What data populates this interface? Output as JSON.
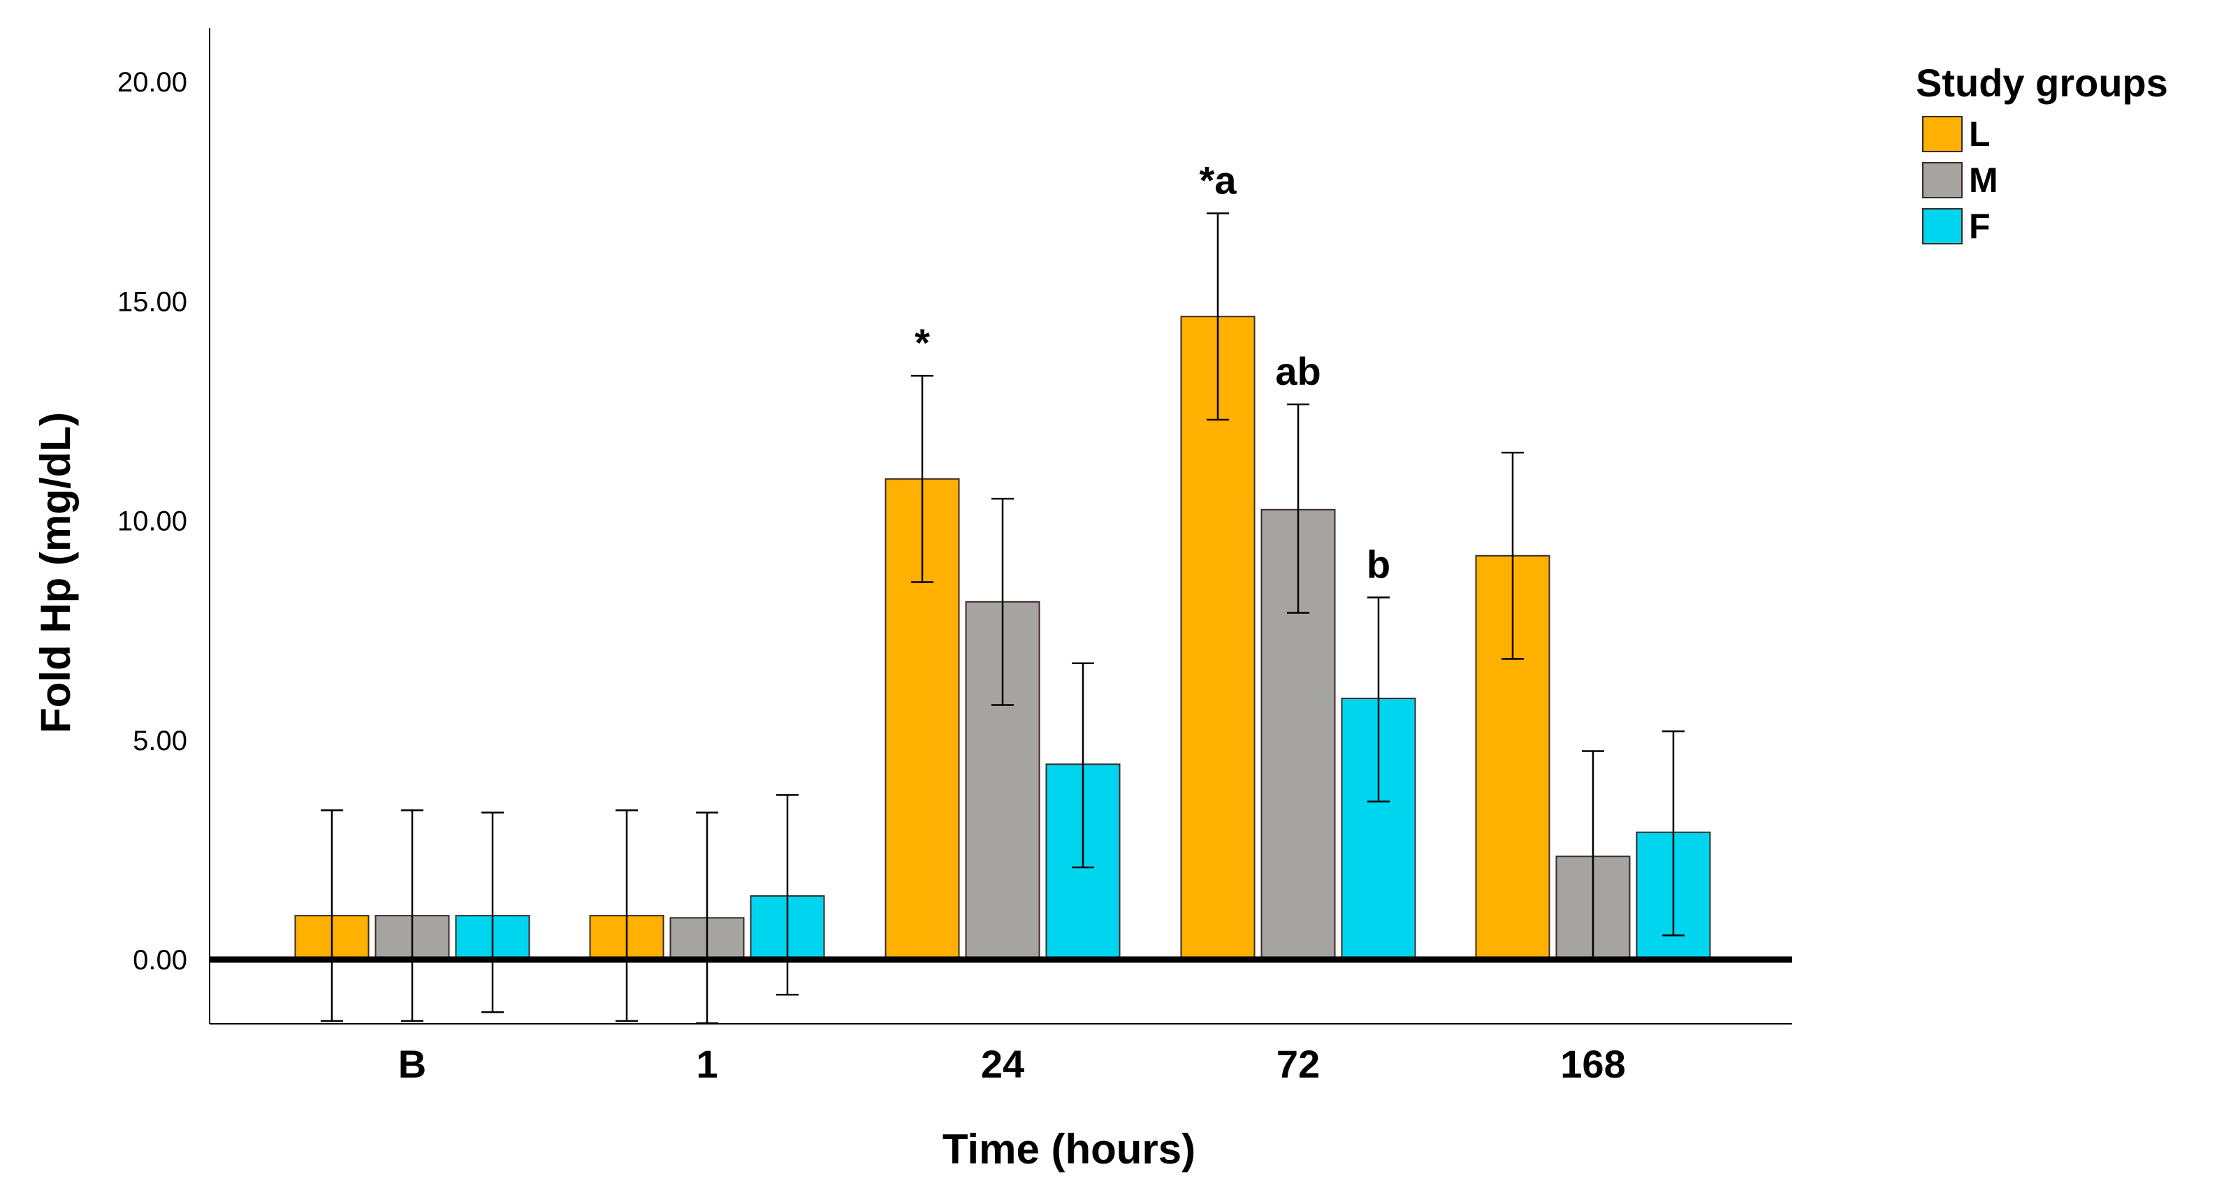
{
  "chart_data": {
    "type": "bar",
    "xlabel": "Time (hours)",
    "ylabel": "Fold Hp (mg/dL)",
    "ylim": [
      -1.5,
      21.5
    ],
    "yticks": [
      0,
      5,
      10,
      15,
      20
    ],
    "ytick_labels": [
      "0.00",
      "5.00",
      "10.00",
      "15.00",
      "20.00"
    ],
    "categories": [
      "B",
      "1",
      "24",
      "72",
      "168"
    ],
    "legend": {
      "title": "Study groups",
      "position": "top-right"
    },
    "series": [
      {
        "name": "L",
        "color": "#FFB000",
        "values": [
          1.0,
          1.0,
          10.95,
          14.65,
          9.2
        ],
        "err_low": [
          -1.4,
          -1.4,
          8.6,
          12.3,
          6.85
        ],
        "err_high": [
          3.4,
          3.4,
          13.3,
          17.0,
          11.55
        ]
      },
      {
        "name": "M",
        "color": "#A6A4A0",
        "values": [
          1.0,
          0.95,
          8.15,
          10.25,
          2.35
        ],
        "err_low": [
          -1.4,
          -1.45,
          5.8,
          7.9,
          0.0
        ],
        "err_high": [
          3.4,
          3.35,
          10.5,
          12.65,
          4.75
        ]
      },
      {
        "name": "F",
        "color": "#00D5EF",
        "values": [
          1.0,
          1.45,
          4.45,
          5.95,
          2.9
        ],
        "err_low": [
          -1.2,
          -0.8,
          2.1,
          3.6,
          0.55
        ],
        "err_high": [
          3.35,
          3.75,
          6.75,
          8.25,
          5.2
        ]
      }
    ],
    "annotations": [
      {
        "text": "*",
        "category": "24",
        "series": "L"
      },
      {
        "text": "*a",
        "category": "72",
        "series": "L"
      },
      {
        "text": "ab",
        "category": "72",
        "series": "M"
      },
      {
        "text": "b",
        "category": "72",
        "series": "F"
      }
    ]
  }
}
